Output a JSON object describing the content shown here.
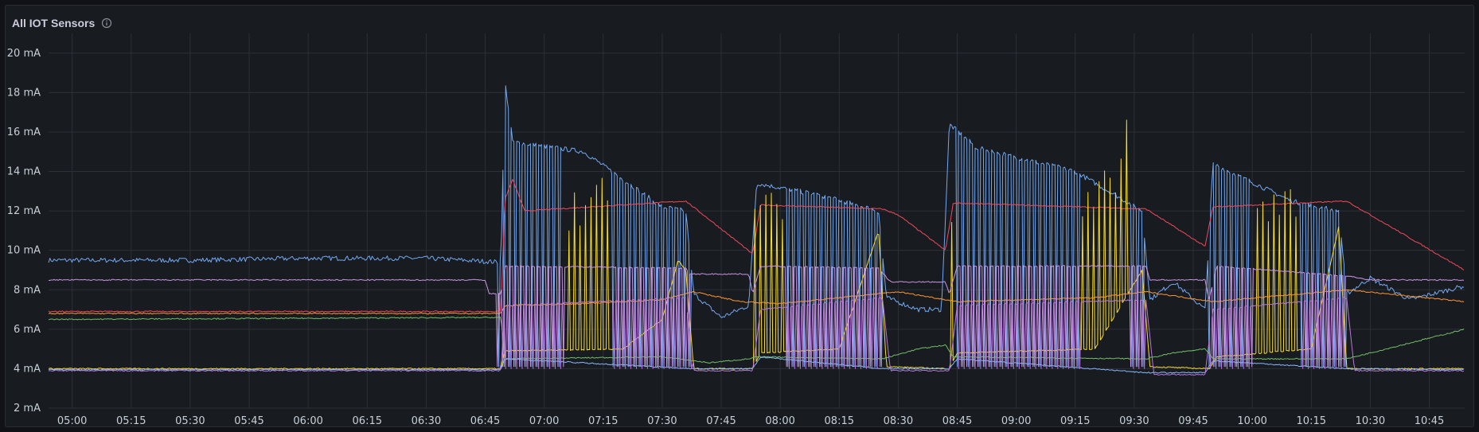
{
  "panel": {
    "title": "All IOT Sensors",
    "info_icon": "info-circle-icon"
  },
  "theme": {
    "background": "#181b1f",
    "grid": "#2c3038",
    "text": "#c7d0d9"
  },
  "chart_data": {
    "type": "line",
    "title": "All IOT Sensors",
    "xlabel": "",
    "ylabel": "",
    "y_unit": "mA",
    "grid": true,
    "legend": "none",
    "xlim": [
      "04:54",
      "10:54"
    ],
    "ylim": [
      2,
      21
    ],
    "y_ticks": [
      "2 mA",
      "4 mA",
      "6 mA",
      "8 mA",
      "10 mA",
      "12 mA",
      "14 mA",
      "16 mA",
      "18 mA",
      "20 mA"
    ],
    "x_ticks": [
      "05:00",
      "05:15",
      "05:30",
      "05:45",
      "06:00",
      "06:15",
      "06:30",
      "06:45",
      "07:00",
      "07:15",
      "07:30",
      "07:45",
      "08:00",
      "08:15",
      "08:30",
      "08:45",
      "09:00",
      "09:15",
      "09:30",
      "09:45",
      "10:00",
      "10:15",
      "10:30",
      "10:45"
    ],
    "cycles": [
      {
        "start": "06:48",
        "end": "07:38"
      },
      {
        "start": "07:53",
        "end": "08:26"
      },
      {
        "start": "08:43",
        "end": "09:33"
      },
      {
        "start": "09:49",
        "end": "10:24"
      }
    ],
    "series": [
      {
        "color": "#73a8f2",
        "points": [
          [
            "04:54",
            9.5
          ],
          [
            "05:30",
            9.5
          ],
          [
            "06:00",
            9.6
          ],
          [
            "06:30",
            9.6
          ],
          [
            "06:49",
            9.4
          ],
          [
            "06:50",
            18.6
          ],
          [
            "06:52",
            15.5
          ],
          [
            "07:10",
            15.0
          ],
          [
            "07:30",
            12.2
          ],
          [
            "07:36",
            12.0
          ],
          [
            "07:38",
            7.8
          ],
          [
            "07:45",
            6.6
          ],
          [
            "07:52",
            7.2
          ],
          [
            "07:54",
            13.4
          ],
          [
            "08:10",
            12.8
          ],
          [
            "08:25",
            12.0
          ],
          [
            "08:27",
            7.6
          ],
          [
            "08:35",
            7.0
          ],
          [
            "08:41",
            7.0
          ],
          [
            "08:43",
            16.4
          ],
          [
            "08:50",
            15.2
          ],
          [
            "09:15",
            14.0
          ],
          [
            "09:32",
            12.0
          ],
          [
            "09:34",
            7.5
          ],
          [
            "09:40",
            8.4
          ],
          [
            "09:48",
            7.0
          ],
          [
            "09:50",
            14.4
          ],
          [
            "10:10",
            12.5
          ],
          [
            "10:22",
            12.0
          ],
          [
            "10:24",
            7.8
          ],
          [
            "10:30",
            8.6
          ],
          [
            "10:40",
            7.5
          ],
          [
            "10:54",
            8.2
          ]
        ]
      },
      {
        "color": "#f2495c",
        "points": [
          [
            "04:54",
            6.9
          ],
          [
            "06:49",
            6.9
          ],
          [
            "06:50",
            12.6
          ],
          [
            "06:52",
            13.6
          ],
          [
            "06:55",
            12.0
          ],
          [
            "07:36",
            12.5
          ],
          [
            "07:50",
            10.3
          ],
          [
            "07:53",
            9.8
          ],
          [
            "07:55",
            12.3
          ],
          [
            "08:26",
            12.1
          ],
          [
            "08:30",
            11.8
          ],
          [
            "08:42",
            10.0
          ],
          [
            "08:44",
            12.4
          ],
          [
            "09:33",
            12.1
          ],
          [
            "09:48",
            10.2
          ],
          [
            "09:50",
            12.2
          ],
          [
            "10:24",
            12.5
          ],
          [
            "10:54",
            9.0
          ]
        ]
      },
      {
        "color": "#fade2a",
        "points": [
          [
            "04:54",
            4.0
          ],
          [
            "06:49",
            4.0
          ],
          [
            "06:50",
            4.9
          ],
          [
            "07:20",
            5.0
          ],
          [
            "07:30",
            6.5
          ],
          [
            "07:34",
            9.5
          ],
          [
            "07:36",
            9.0
          ],
          [
            "07:38",
            4.0
          ],
          [
            "07:53",
            4.0
          ],
          [
            "07:55",
            4.8
          ],
          [
            "08:15",
            5.0
          ],
          [
            "08:25",
            11.0
          ],
          [
            "08:27",
            4.1
          ],
          [
            "08:43",
            4.0
          ],
          [
            "08:45",
            4.8
          ],
          [
            "09:20",
            5.0
          ],
          [
            "09:32",
            9.0
          ],
          [
            "09:34",
            4.1
          ],
          [
            "09:49",
            4.0
          ],
          [
            "09:51",
            4.6
          ],
          [
            "10:15",
            5.0
          ],
          [
            "10:22",
            11.2
          ],
          [
            "10:24",
            4.0
          ],
          [
            "10:54",
            4.0
          ]
        ]
      },
      {
        "color": "#73bf69",
        "points": [
          [
            "04:54",
            6.5
          ],
          [
            "06:49",
            6.6
          ],
          [
            "06:50",
            4.5
          ],
          [
            "07:30",
            4.6
          ],
          [
            "07:38",
            4.4
          ],
          [
            "07:42",
            4.3
          ],
          [
            "07:52",
            4.5
          ],
          [
            "07:54",
            4.6
          ],
          [
            "08:26",
            4.5
          ],
          [
            "08:35",
            5.0
          ],
          [
            "08:42",
            5.2
          ],
          [
            "08:44",
            4.6
          ],
          [
            "09:33",
            4.5
          ],
          [
            "09:40",
            4.8
          ],
          [
            "09:48",
            5.0
          ],
          [
            "09:50",
            4.5
          ],
          [
            "10:24",
            4.5
          ],
          [
            "10:54",
            6.0
          ]
        ]
      },
      {
        "color": "#ff9830",
        "points": [
          [
            "04:54",
            6.8
          ],
          [
            "06:49",
            6.8
          ],
          [
            "06:50",
            7.2
          ],
          [
            "07:10",
            7.3
          ],
          [
            "07:30",
            7.5
          ],
          [
            "07:38",
            7.9
          ],
          [
            "07:50",
            7.4
          ],
          [
            "08:00",
            7.3
          ],
          [
            "08:30",
            7.9
          ],
          [
            "08:45",
            7.4
          ],
          [
            "09:20",
            7.6
          ],
          [
            "09:33",
            7.9
          ],
          [
            "09:50",
            7.4
          ],
          [
            "10:24",
            8.0
          ],
          [
            "10:54",
            7.4
          ]
        ]
      },
      {
        "color": "#ca95e5",
        "points": [
          [
            "04:54",
            8.5
          ],
          [
            "06:45",
            8.5
          ],
          [
            "06:46",
            7.8
          ],
          [
            "06:49",
            7.8
          ],
          [
            "06:50",
            9.2
          ],
          [
            "07:36",
            9.1
          ],
          [
            "07:37",
            8.8
          ],
          [
            "07:52",
            8.8
          ],
          [
            "07:53",
            7.8
          ],
          [
            "07:55",
            9.2
          ],
          [
            "08:25",
            9.1
          ],
          [
            "08:28",
            8.4
          ],
          [
            "08:42",
            8.4
          ],
          [
            "08:43",
            7.8
          ],
          [
            "08:45",
            9.2
          ],
          [
            "09:33",
            9.2
          ],
          [
            "09:34",
            8.5
          ],
          [
            "09:48",
            8.5
          ],
          [
            "09:49",
            7.5
          ],
          [
            "09:51",
            9.2
          ],
          [
            "10:24",
            8.7
          ],
          [
            "10:30",
            8.5
          ],
          [
            "10:54",
            8.5
          ]
        ]
      },
      {
        "color": "#8ab8ff",
        "points": [
          [
            "04:54",
            3.95
          ],
          [
            "06:49",
            3.95
          ],
          [
            "06:50",
            4.5
          ],
          [
            "07:38",
            4.0
          ],
          [
            "07:53",
            4.0
          ],
          [
            "07:55",
            4.6
          ],
          [
            "08:26",
            4.0
          ],
          [
            "08:43",
            4.0
          ],
          [
            "08:45",
            4.5
          ],
          [
            "09:33",
            3.8
          ],
          [
            "09:48",
            3.8
          ],
          [
            "09:50",
            4.4
          ],
          [
            "10:24",
            4.0
          ],
          [
            "10:54",
            3.95
          ]
        ]
      },
      {
        "color": "#b877d9",
        "points": [
          [
            "04:54",
            3.9
          ],
          [
            "06:49",
            3.9
          ],
          [
            "06:50",
            7.2
          ],
          [
            "07:36",
            7.6
          ],
          [
            "07:38",
            3.9
          ],
          [
            "07:53",
            3.9
          ],
          [
            "07:55",
            7.0
          ],
          [
            "08:26",
            7.6
          ],
          [
            "08:28",
            3.9
          ],
          [
            "08:43",
            3.9
          ],
          [
            "08:45",
            7.2
          ],
          [
            "09:33",
            7.5
          ],
          [
            "09:35",
            3.7
          ],
          [
            "09:48",
            3.7
          ],
          [
            "09:50",
            7.0
          ],
          [
            "10:24",
            7.6
          ],
          [
            "10:26",
            3.9
          ],
          [
            "10:54",
            3.9
          ]
        ]
      }
    ]
  }
}
